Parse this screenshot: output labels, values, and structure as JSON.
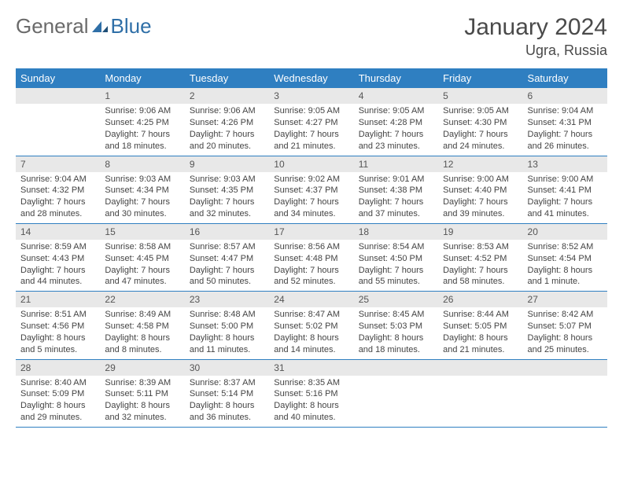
{
  "logo": {
    "text1": "General",
    "text2": "Blue"
  },
  "title": "January 2024",
  "location": "Ugra, Russia",
  "colors": {
    "header_bg": "#2f7fc1",
    "header_text": "#ffffff",
    "daynum_bg": "#e8e8e8",
    "border": "#2f7fc1",
    "logo_blue": "#2f6fa7",
    "logo_gray": "#6a6a6a"
  },
  "weekdays": [
    "Sunday",
    "Monday",
    "Tuesday",
    "Wednesday",
    "Thursday",
    "Friday",
    "Saturday"
  ],
  "weeks": [
    [
      {
        "day": "",
        "lines": []
      },
      {
        "day": "1",
        "lines": [
          "Sunrise: 9:06 AM",
          "Sunset: 4:25 PM",
          "Daylight: 7 hours",
          "and 18 minutes."
        ]
      },
      {
        "day": "2",
        "lines": [
          "Sunrise: 9:06 AM",
          "Sunset: 4:26 PM",
          "Daylight: 7 hours",
          "and 20 minutes."
        ]
      },
      {
        "day": "3",
        "lines": [
          "Sunrise: 9:05 AM",
          "Sunset: 4:27 PM",
          "Daylight: 7 hours",
          "and 21 minutes."
        ]
      },
      {
        "day": "4",
        "lines": [
          "Sunrise: 9:05 AM",
          "Sunset: 4:28 PM",
          "Daylight: 7 hours",
          "and 23 minutes."
        ]
      },
      {
        "day": "5",
        "lines": [
          "Sunrise: 9:05 AM",
          "Sunset: 4:30 PM",
          "Daylight: 7 hours",
          "and 24 minutes."
        ]
      },
      {
        "day": "6",
        "lines": [
          "Sunrise: 9:04 AM",
          "Sunset: 4:31 PM",
          "Daylight: 7 hours",
          "and 26 minutes."
        ]
      }
    ],
    [
      {
        "day": "7",
        "lines": [
          "Sunrise: 9:04 AM",
          "Sunset: 4:32 PM",
          "Daylight: 7 hours",
          "and 28 minutes."
        ]
      },
      {
        "day": "8",
        "lines": [
          "Sunrise: 9:03 AM",
          "Sunset: 4:34 PM",
          "Daylight: 7 hours",
          "and 30 minutes."
        ]
      },
      {
        "day": "9",
        "lines": [
          "Sunrise: 9:03 AM",
          "Sunset: 4:35 PM",
          "Daylight: 7 hours",
          "and 32 minutes."
        ]
      },
      {
        "day": "10",
        "lines": [
          "Sunrise: 9:02 AM",
          "Sunset: 4:37 PM",
          "Daylight: 7 hours",
          "and 34 minutes."
        ]
      },
      {
        "day": "11",
        "lines": [
          "Sunrise: 9:01 AM",
          "Sunset: 4:38 PM",
          "Daylight: 7 hours",
          "and 37 minutes."
        ]
      },
      {
        "day": "12",
        "lines": [
          "Sunrise: 9:00 AM",
          "Sunset: 4:40 PM",
          "Daylight: 7 hours",
          "and 39 minutes."
        ]
      },
      {
        "day": "13",
        "lines": [
          "Sunrise: 9:00 AM",
          "Sunset: 4:41 PM",
          "Daylight: 7 hours",
          "and 41 minutes."
        ]
      }
    ],
    [
      {
        "day": "14",
        "lines": [
          "Sunrise: 8:59 AM",
          "Sunset: 4:43 PM",
          "Daylight: 7 hours",
          "and 44 minutes."
        ]
      },
      {
        "day": "15",
        "lines": [
          "Sunrise: 8:58 AM",
          "Sunset: 4:45 PM",
          "Daylight: 7 hours",
          "and 47 minutes."
        ]
      },
      {
        "day": "16",
        "lines": [
          "Sunrise: 8:57 AM",
          "Sunset: 4:47 PM",
          "Daylight: 7 hours",
          "and 50 minutes."
        ]
      },
      {
        "day": "17",
        "lines": [
          "Sunrise: 8:56 AM",
          "Sunset: 4:48 PM",
          "Daylight: 7 hours",
          "and 52 minutes."
        ]
      },
      {
        "day": "18",
        "lines": [
          "Sunrise: 8:54 AM",
          "Sunset: 4:50 PM",
          "Daylight: 7 hours",
          "and 55 minutes."
        ]
      },
      {
        "day": "19",
        "lines": [
          "Sunrise: 8:53 AM",
          "Sunset: 4:52 PM",
          "Daylight: 7 hours",
          "and 58 minutes."
        ]
      },
      {
        "day": "20",
        "lines": [
          "Sunrise: 8:52 AM",
          "Sunset: 4:54 PM",
          "Daylight: 8 hours",
          "and 1 minute."
        ]
      }
    ],
    [
      {
        "day": "21",
        "lines": [
          "Sunrise: 8:51 AM",
          "Sunset: 4:56 PM",
          "Daylight: 8 hours",
          "and 5 minutes."
        ]
      },
      {
        "day": "22",
        "lines": [
          "Sunrise: 8:49 AM",
          "Sunset: 4:58 PM",
          "Daylight: 8 hours",
          "and 8 minutes."
        ]
      },
      {
        "day": "23",
        "lines": [
          "Sunrise: 8:48 AM",
          "Sunset: 5:00 PM",
          "Daylight: 8 hours",
          "and 11 minutes."
        ]
      },
      {
        "day": "24",
        "lines": [
          "Sunrise: 8:47 AM",
          "Sunset: 5:02 PM",
          "Daylight: 8 hours",
          "and 14 minutes."
        ]
      },
      {
        "day": "25",
        "lines": [
          "Sunrise: 8:45 AM",
          "Sunset: 5:03 PM",
          "Daylight: 8 hours",
          "and 18 minutes."
        ]
      },
      {
        "day": "26",
        "lines": [
          "Sunrise: 8:44 AM",
          "Sunset: 5:05 PM",
          "Daylight: 8 hours",
          "and 21 minutes."
        ]
      },
      {
        "day": "27",
        "lines": [
          "Sunrise: 8:42 AM",
          "Sunset: 5:07 PM",
          "Daylight: 8 hours",
          "and 25 minutes."
        ]
      }
    ],
    [
      {
        "day": "28",
        "lines": [
          "Sunrise: 8:40 AM",
          "Sunset: 5:09 PM",
          "Daylight: 8 hours",
          "and 29 minutes."
        ]
      },
      {
        "day": "29",
        "lines": [
          "Sunrise: 8:39 AM",
          "Sunset: 5:11 PM",
          "Daylight: 8 hours",
          "and 32 minutes."
        ]
      },
      {
        "day": "30",
        "lines": [
          "Sunrise: 8:37 AM",
          "Sunset: 5:14 PM",
          "Daylight: 8 hours",
          "and 36 minutes."
        ]
      },
      {
        "day": "31",
        "lines": [
          "Sunrise: 8:35 AM",
          "Sunset: 5:16 PM",
          "Daylight: 8 hours",
          "and 40 minutes."
        ]
      },
      {
        "day": "",
        "lines": []
      },
      {
        "day": "",
        "lines": []
      },
      {
        "day": "",
        "lines": []
      }
    ]
  ]
}
